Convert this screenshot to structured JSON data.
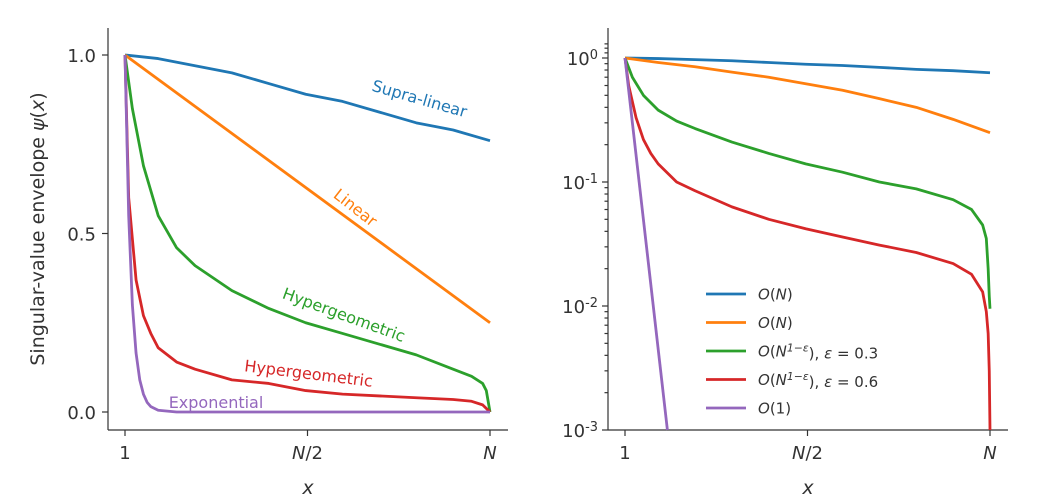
{
  "chart_data": [
    {
      "type": "line",
      "panel": "left",
      "scale": "linear",
      "xlabel": "x",
      "ylabel": "Singular-value envelope ψ(x)",
      "xticks": [
        "1",
        "N/2",
        "N"
      ],
      "yticks": [
        "0.0",
        "0.5",
        "1.0"
      ],
      "xlim": [
        1,
        100
      ],
      "ylim": [
        -0.05,
        1.05
      ],
      "series": [
        {
          "name": "Supra-linear",
          "color": "#1f77b4",
          "x": [
            1,
            10,
            20,
            30,
            40,
            50,
            60,
            70,
            80,
            90,
            100
          ],
          "values": [
            1.0,
            0.99,
            0.97,
            0.95,
            0.92,
            0.89,
            0.87,
            0.84,
            0.81,
            0.79,
            0.76
          ]
        },
        {
          "name": "Linear",
          "color": "#ff7f0e",
          "x": [
            1,
            100
          ],
          "values": [
            1.0,
            0.25
          ]
        },
        {
          "name": "Hypergeometric",
          "color": "#2ca02c",
          "x": [
            1,
            3,
            6,
            10,
            15,
            20,
            30,
            40,
            50,
            60,
            70,
            80,
            90,
            95,
            98,
            99,
            100
          ],
          "values": [
            1.0,
            0.85,
            0.69,
            0.55,
            0.46,
            0.41,
            0.34,
            0.29,
            0.25,
            0.22,
            0.19,
            0.16,
            0.12,
            0.1,
            0.08,
            0.06,
            0.0
          ]
        },
        {
          "name": "Hypergeometric",
          "color": "#d62728",
          "x": [
            1,
            2,
            4,
            6,
            8,
            10,
            15,
            20,
            30,
            40,
            50,
            60,
            70,
            80,
            90,
            95,
            98,
            100
          ],
          "values": [
            1.0,
            0.6,
            0.37,
            0.27,
            0.22,
            0.18,
            0.14,
            0.12,
            0.09,
            0.08,
            0.06,
            0.05,
            0.045,
            0.04,
            0.035,
            0.03,
            0.02,
            0.0
          ]
        },
        {
          "name": "Exponential",
          "color": "#9467bd",
          "x": [
            1,
            2,
            3,
            4,
            5,
            6,
            7,
            8,
            10,
            15,
            20,
            100
          ],
          "values": [
            1.0,
            0.55,
            0.3,
            0.165,
            0.09,
            0.05,
            0.027,
            0.015,
            0.005,
            0.0,
            0.0,
            0.0
          ]
        }
      ],
      "curve_labels": [
        "Supra-linear",
        "Linear",
        "Hypergeometric",
        "Hypergeometric",
        "Exponential"
      ]
    },
    {
      "type": "line",
      "panel": "right",
      "scale": "log",
      "xlabel": "x",
      "ylabel": "",
      "xticks": [
        "1",
        "N/2",
        "N"
      ],
      "yticks": [
        "10^0",
        "10^-1",
        "10^-2",
        "10^-3"
      ],
      "xlim": [
        1,
        100
      ],
      "ylim": [
        0.001,
        1.35
      ],
      "series": [
        {
          "name": "O(N)",
          "color": "#1f77b4",
          "x": [
            1,
            10,
            20,
            30,
            40,
            50,
            60,
            70,
            80,
            90,
            100
          ],
          "values": [
            1.0,
            0.99,
            0.97,
            0.95,
            0.92,
            0.89,
            0.87,
            0.84,
            0.81,
            0.79,
            0.76
          ]
        },
        {
          "name": "O(N)",
          "color": "#ff7f0e",
          "x": [
            1,
            10,
            20,
            30,
            40,
            50,
            60,
            70,
            80,
            90,
            100
          ],
          "values": [
            1.0,
            0.92,
            0.85,
            0.77,
            0.7,
            0.62,
            0.55,
            0.47,
            0.4,
            0.32,
            0.25
          ]
        },
        {
          "name": "O(N^{1−ε}), ε = 0.3",
          "color": "#2ca02c",
          "x": [
            1,
            3,
            6,
            10,
            15,
            20,
            30,
            40,
            50,
            60,
            70,
            80,
            90,
            95,
            98,
            99,
            99.5,
            99.8,
            100
          ],
          "values": [
            1.0,
            0.7,
            0.5,
            0.38,
            0.31,
            0.27,
            0.21,
            0.17,
            0.14,
            0.12,
            0.1,
            0.088,
            0.072,
            0.06,
            0.045,
            0.035,
            0.02,
            0.012,
            0.0095
          ]
        },
        {
          "name": "O(N^{1−ε}), ε = 0.6",
          "color": "#d62728",
          "x": [
            1,
            2,
            4,
            6,
            8,
            10,
            15,
            20,
            30,
            40,
            50,
            60,
            70,
            80,
            90,
            95,
            98,
            99,
            99.5,
            99.8,
            100
          ],
          "values": [
            1.0,
            0.6,
            0.33,
            0.22,
            0.17,
            0.14,
            0.1,
            0.085,
            0.063,
            0.05,
            0.042,
            0.036,
            0.031,
            0.027,
            0.022,
            0.018,
            0.013,
            0.009,
            0.006,
            0.003,
            0.001
          ]
        },
        {
          "name": "O(1)",
          "color": "#9467bd",
          "x": [
            1,
            12.5
          ],
          "values": [
            1.0,
            0.001
          ]
        }
      ],
      "legend": {
        "placement": "center-right",
        "entries": [
          "O(N)",
          "O(N)",
          "O(N^{1−ε}), ε = 0.3",
          "O(N^{1−ε}), ε = 0.6",
          "O(1)"
        ]
      }
    }
  ]
}
